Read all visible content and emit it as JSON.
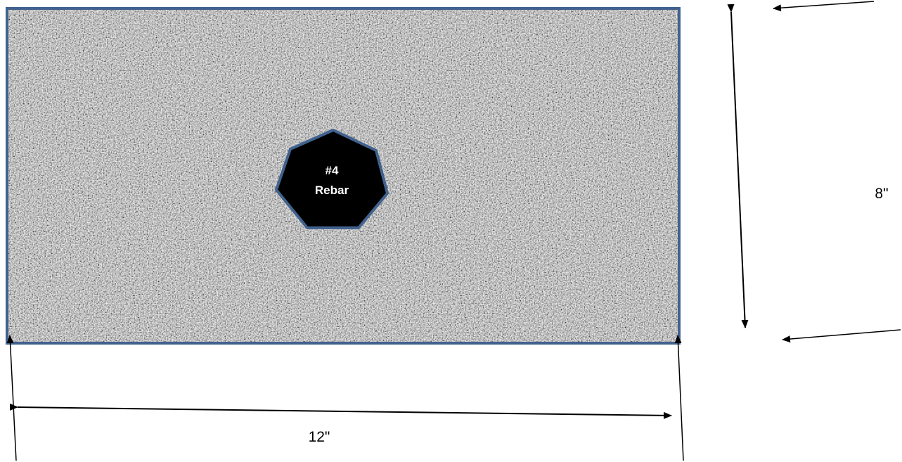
{
  "section": {
    "width_label": "12\"",
    "height_label": "8\""
  },
  "rebar": {
    "size_label": "#4",
    "name_label": "Rebar"
  },
  "colors": {
    "outline": "#41628e",
    "rebar_fill": "#000000",
    "concrete": "#a9a9a9",
    "arrow": "#000000"
  }
}
